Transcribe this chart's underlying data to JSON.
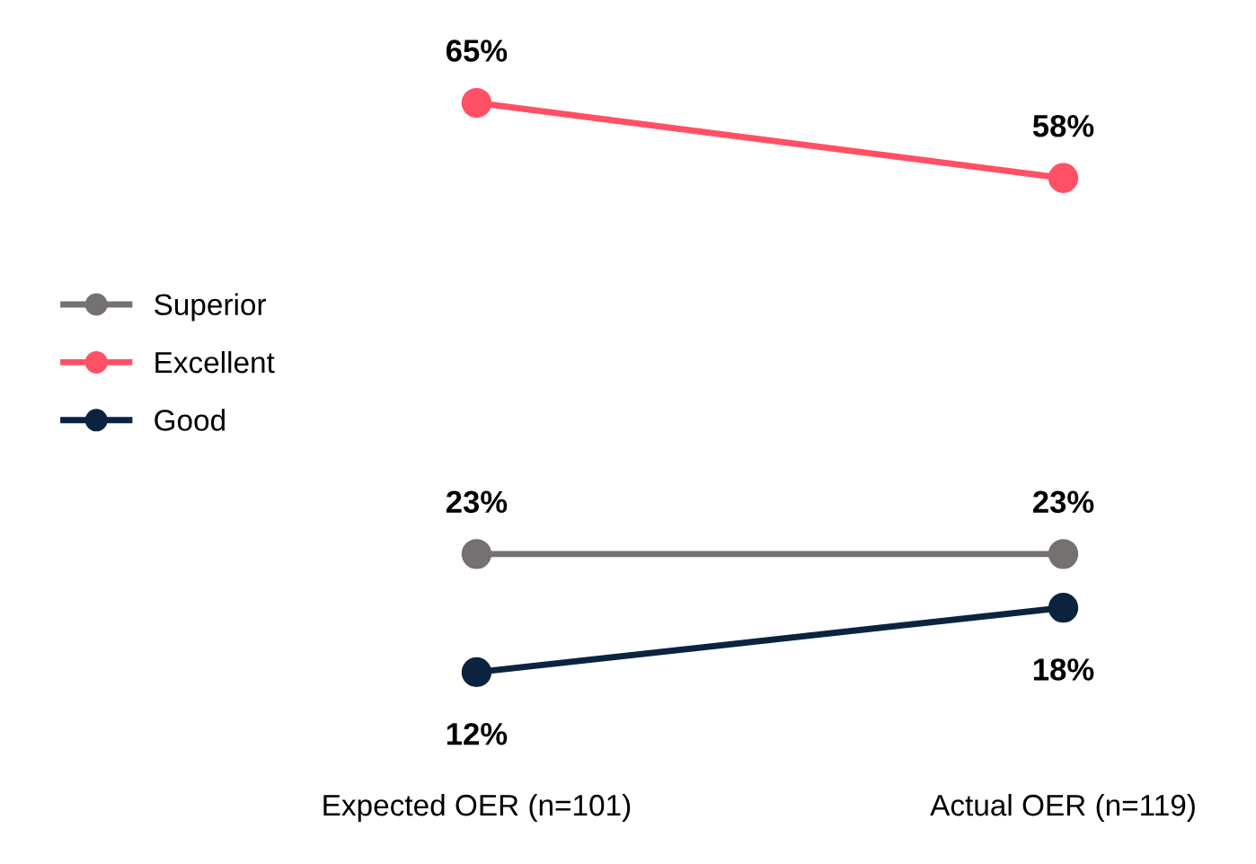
{
  "chart_data": {
    "type": "line",
    "categories": [
      "Expected OER (n=101)",
      "Actual OER (n=119)"
    ],
    "series": [
      {
        "name": "Superior",
        "color": "#767171",
        "values": [
          23,
          23
        ],
        "value_labels": [
          "23%",
          "23%"
        ]
      },
      {
        "name": "Excellent",
        "color": "#ff5065",
        "values": [
          65,
          58
        ],
        "value_labels": [
          "65%",
          "58%"
        ]
      },
      {
        "name": "Good",
        "color": "#0c2340",
        "values": [
          12,
          18
        ],
        "value_labels": [
          "12%",
          "18%"
        ]
      }
    ],
    "marker": "circle",
    "line_style": "solid",
    "legend": "left",
    "grid": false,
    "tick_labels": "x"
  }
}
